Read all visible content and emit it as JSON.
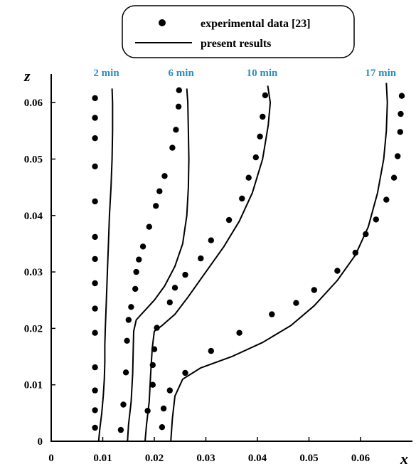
{
  "chart_data": {
    "type": "scatter",
    "title": "",
    "xlabel": "x",
    "ylabel": "z",
    "xlim": [
      0,
      0.07
    ],
    "ylim": [
      0,
      0.065
    ],
    "x_ticks": [
      "0",
      "0.01",
      "0.02",
      "0.03",
      "0.04",
      "0.05",
      "0.06"
    ],
    "y_ticks": [
      "0",
      "0.01",
      "0.02",
      "0.03",
      "0.04",
      "0.05",
      "0.06"
    ],
    "grid": false,
    "legend": {
      "placement": "top-center",
      "entries": [
        {
          "marker": "dot",
          "label": "experimental data [23]"
        },
        {
          "marker": "line",
          "label": "present results"
        }
      ]
    },
    "label_color": "#2a8fc4",
    "series": [
      {
        "name": "2 min",
        "experimental": [
          [
            0.0085,
            0.0024
          ],
          [
            0.0085,
            0.0055
          ],
          [
            0.0085,
            0.009
          ],
          [
            0.0085,
            0.0131
          ],
          [
            0.0085,
            0.0192
          ],
          [
            0.0085,
            0.0235
          ],
          [
            0.0085,
            0.028
          ],
          [
            0.0085,
            0.0323
          ],
          [
            0.0085,
            0.0362
          ],
          [
            0.0085,
            0.0425
          ],
          [
            0.0085,
            0.0487
          ],
          [
            0.0085,
            0.0537
          ],
          [
            0.0085,
            0.0573
          ],
          [
            0.0085,
            0.0608
          ]
        ],
        "present": [
          [
            0.0092,
            0.0
          ],
          [
            0.0094,
            0.002
          ],
          [
            0.0098,
            0.005
          ],
          [
            0.0101,
            0.008
          ],
          [
            0.0103,
            0.011
          ],
          [
            0.0104,
            0.014
          ],
          [
            0.0104,
            0.017
          ],
          [
            0.0105,
            0.02
          ],
          [
            0.0107,
            0.025
          ],
          [
            0.0109,
            0.03
          ],
          [
            0.0111,
            0.035
          ],
          [
            0.0113,
            0.04
          ],
          [
            0.0116,
            0.045
          ],
          [
            0.0118,
            0.05
          ],
          [
            0.0119,
            0.055
          ],
          [
            0.0119,
            0.06
          ],
          [
            0.0118,
            0.0625
          ]
        ]
      },
      {
        "name": "6 min",
        "experimental": [
          [
            0.0135,
            0.002
          ],
          [
            0.014,
            0.0065
          ],
          [
            0.0145,
            0.0122
          ],
          [
            0.0147,
            0.0178
          ],
          [
            0.015,
            0.0215
          ],
          [
            0.0155,
            0.0238
          ],
          [
            0.0163,
            0.027
          ],
          [
            0.0165,
            0.03
          ],
          [
            0.017,
            0.0322
          ],
          [
            0.0178,
            0.0345
          ],
          [
            0.019,
            0.038
          ],
          [
            0.0203,
            0.0417
          ],
          [
            0.021,
            0.0443
          ],
          [
            0.022,
            0.047
          ],
          [
            0.0235,
            0.052
          ],
          [
            0.0242,
            0.0552
          ],
          [
            0.0247,
            0.0593
          ],
          [
            0.0248,
            0.0622
          ]
        ],
        "present": [
          [
            0.0148,
            0.0
          ],
          [
            0.015,
            0.003
          ],
          [
            0.0155,
            0.007
          ],
          [
            0.0158,
            0.012
          ],
          [
            0.0159,
            0.016
          ],
          [
            0.016,
            0.0195
          ],
          [
            0.0165,
            0.0215
          ],
          [
            0.018,
            0.023
          ],
          [
            0.02,
            0.025
          ],
          [
            0.022,
            0.0275
          ],
          [
            0.024,
            0.031
          ],
          [
            0.0255,
            0.035
          ],
          [
            0.0263,
            0.04
          ],
          [
            0.0266,
            0.045
          ],
          [
            0.0267,
            0.05
          ],
          [
            0.0266,
            0.055
          ],
          [
            0.0265,
            0.06
          ],
          [
            0.0263,
            0.0625
          ]
        ]
      },
      {
        "name": "10 min",
        "experimental": [
          [
            0.0187,
            0.0054
          ],
          [
            0.0197,
            0.01
          ],
          [
            0.0197,
            0.0135
          ],
          [
            0.02,
            0.0163
          ],
          [
            0.0205,
            0.0201
          ],
          [
            0.023,
            0.0246
          ],
          [
            0.024,
            0.0272
          ],
          [
            0.026,
            0.0295
          ],
          [
            0.029,
            0.0324
          ],
          [
            0.031,
            0.0356
          ],
          [
            0.0345,
            0.0392
          ],
          [
            0.037,
            0.043
          ],
          [
            0.0383,
            0.0467
          ],
          [
            0.0397,
            0.0503
          ],
          [
            0.0405,
            0.054
          ],
          [
            0.041,
            0.0575
          ],
          [
            0.0415,
            0.0613
          ]
        ],
        "present": [
          [
            0.0182,
            0.0
          ],
          [
            0.0185,
            0.003
          ],
          [
            0.019,
            0.007
          ],
          [
            0.0193,
            0.012
          ],
          [
            0.0196,
            0.0165
          ],
          [
            0.02,
            0.0195
          ],
          [
            0.0215,
            0.0205
          ],
          [
            0.024,
            0.0225
          ],
          [
            0.0265,
            0.0255
          ],
          [
            0.03,
            0.03
          ],
          [
            0.0335,
            0.0345
          ],
          [
            0.0365,
            0.039
          ],
          [
            0.039,
            0.044
          ],
          [
            0.041,
            0.05
          ],
          [
            0.0421,
            0.056
          ],
          [
            0.0425,
            0.06
          ],
          [
            0.042,
            0.063
          ]
        ]
      },
      {
        "name": "17 min",
        "experimental": [
          [
            0.0215,
            0.0025
          ],
          [
            0.0218,
            0.0058
          ],
          [
            0.023,
            0.009
          ],
          [
            0.026,
            0.0121
          ],
          [
            0.031,
            0.016
          ],
          [
            0.0365,
            0.0192
          ],
          [
            0.0428,
            0.0225
          ],
          [
            0.0475,
            0.0245
          ],
          [
            0.051,
            0.0268
          ],
          [
            0.0555,
            0.0302
          ],
          [
            0.059,
            0.0334
          ],
          [
            0.061,
            0.0367
          ],
          [
            0.063,
            0.0393
          ],
          [
            0.065,
            0.0428
          ],
          [
            0.0665,
            0.0467
          ],
          [
            0.0672,
            0.0505
          ],
          [
            0.0677,
            0.0548
          ],
          [
            0.0678,
            0.058
          ],
          [
            0.068,
            0.0612
          ]
        ],
        "present": [
          [
            0.0232,
            0.0
          ],
          [
            0.0235,
            0.004
          ],
          [
            0.024,
            0.008
          ],
          [
            0.0255,
            0.011
          ],
          [
            0.029,
            0.013
          ],
          [
            0.035,
            0.015
          ],
          [
            0.041,
            0.0175
          ],
          [
            0.0465,
            0.0205
          ],
          [
            0.051,
            0.024
          ],
          [
            0.0555,
            0.0285
          ],
          [
            0.059,
            0.033
          ],
          [
            0.0615,
            0.038
          ],
          [
            0.0633,
            0.044
          ],
          [
            0.0645,
            0.05
          ],
          [
            0.065,
            0.055
          ],
          [
            0.0652,
            0.06
          ],
          [
            0.065,
            0.0635
          ]
        ]
      }
    ]
  }
}
